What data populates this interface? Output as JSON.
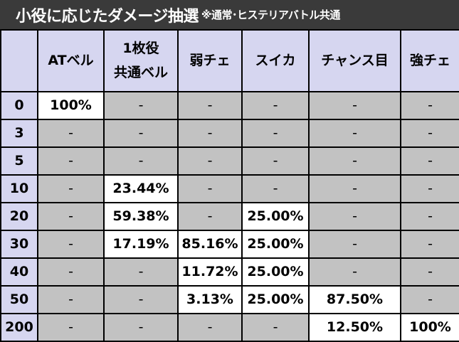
{
  "title": {
    "main": "小役に応じたダメージ抽選",
    "note": "※通常･ヒステリアバトル共通"
  },
  "table": {
    "headers": [
      {
        "line1": "ATベル",
        "line2": ""
      },
      {
        "line1": "1枚役",
        "line2": "共通ベル"
      },
      {
        "line1": "弱チェ",
        "line2": ""
      },
      {
        "line1": "スイカ",
        "line2": ""
      },
      {
        "line1": "チャンス目",
        "line2": ""
      },
      {
        "line1": "強チェ",
        "line2": ""
      }
    ],
    "rows": [
      {
        "label": "0",
        "cells": [
          "100%",
          "-",
          "-",
          "-",
          "-",
          "-"
        ]
      },
      {
        "label": "3",
        "cells": [
          "-",
          "-",
          "-",
          "-",
          "-",
          "-"
        ]
      },
      {
        "label": "5",
        "cells": [
          "-",
          "-",
          "-",
          "-",
          "-",
          "-"
        ]
      },
      {
        "label": "10",
        "cells": [
          "-",
          "23.44%",
          "-",
          "-",
          "-",
          "-"
        ]
      },
      {
        "label": "20",
        "cells": [
          "-",
          "59.38%",
          "-",
          "25.00%",
          "-",
          "-"
        ]
      },
      {
        "label": "30",
        "cells": [
          "-",
          "17.19%",
          "85.16%",
          "25.00%",
          "-",
          "-"
        ]
      },
      {
        "label": "40",
        "cells": [
          "-",
          "-",
          "11.72%",
          "25.00%",
          "-",
          "-"
        ]
      },
      {
        "label": "50",
        "cells": [
          "-",
          "-",
          "3.13%",
          "25.00%",
          "87.50%",
          "-"
        ]
      },
      {
        "label": "200",
        "cells": [
          "-",
          "-",
          "-",
          "-",
          "12.50%",
          "100%"
        ]
      }
    ]
  }
}
